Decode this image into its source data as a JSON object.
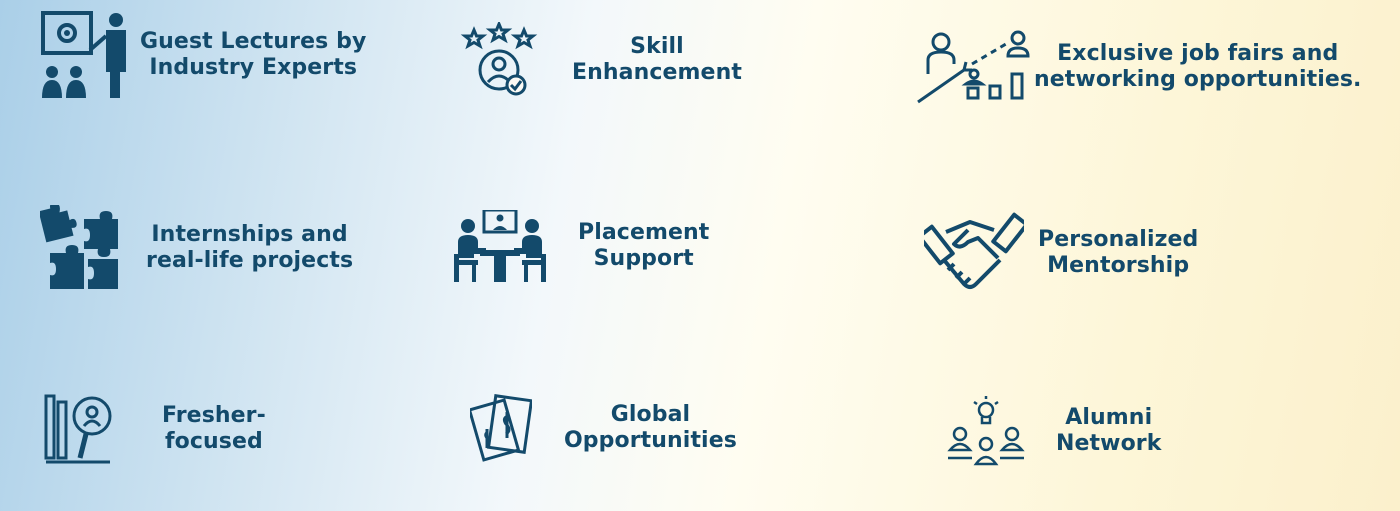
{
  "features": [
    {
      "line1": "Guest Lectures by",
      "line2": "Industry Experts",
      "icon": "presenter-icon"
    },
    {
      "line1": "Skill",
      "line2": "Enhancement",
      "icon": "skill-star-user-icon"
    },
    {
      "line1": "Exclusive job fairs and",
      "line2": "networking opportunities.",
      "icon": "career-growth-icon"
    },
    {
      "line1": "Internships and",
      "line2": "real-life projects",
      "icon": "puzzle-icon"
    },
    {
      "line1": "Placement",
      "line2": "Support",
      "icon": "interview-meeting-icon"
    },
    {
      "line1": "Personalized",
      "line2": "Mentorship",
      "icon": "handshake-icon"
    },
    {
      "line1": "Fresher-",
      "line2": "focused",
      "icon": "resume-search-icon"
    },
    {
      "line1": "Global",
      "line2": "Opportunities",
      "icon": "money-bills-icon"
    },
    {
      "line1": "Alumni",
      "line2": "Network",
      "icon": "idea-group-icon"
    }
  ],
  "colors": {
    "text": "#134a6b",
    "icon": "#134a6b"
  }
}
